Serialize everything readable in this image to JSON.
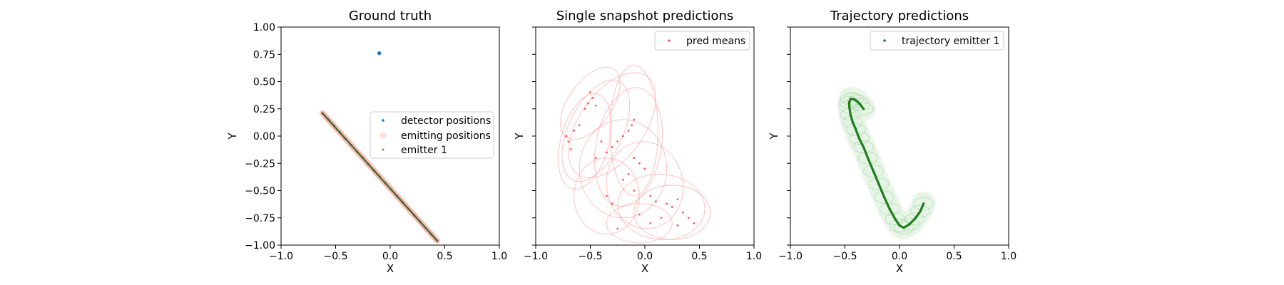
{
  "chart_data": [
    {
      "type": "scatter",
      "title": "Ground truth",
      "xlabel": "X",
      "ylabel": "Y",
      "xlim": [
        -1.0,
        1.0
      ],
      "ylim": [
        -1.0,
        1.0
      ],
      "xticks": [
        "−1.0",
        "−0.5",
        "0.0",
        "0.5",
        "1.0"
      ],
      "yticks": [
        "−1.00",
        "−0.75",
        "−0.50",
        "−0.25",
        "0.00",
        "0.25",
        "0.50",
        "0.75",
        "1.00"
      ],
      "legend_position": "center-right",
      "legend": [
        "detector positions",
        "emitting positions",
        "emitter 1"
      ],
      "series": [
        {
          "name": "detector positions",
          "color": "#1f77b4",
          "points": [
            [
              -0.1,
              0.76
            ]
          ]
        },
        {
          "name": "emitting positions",
          "color": "#ff9f96",
          "points": [
            [
              -0.62,
              0.21
            ],
            [
              0.43,
              -0.96
            ]
          ]
        },
        {
          "name": "emitter 1",
          "color": "#2f6b2f",
          "points": [
            [
              -0.62,
              0.21
            ],
            [
              0.43,
              -0.96
            ]
          ]
        }
      ]
    },
    {
      "type": "scatter",
      "title": "Single snapshot predictions",
      "xlabel": "X",
      "ylabel": "Y",
      "xlim": [
        -1.0,
        1.0
      ],
      "ylim": [
        -1.0,
        1.0
      ],
      "xticks": [
        "−1.0",
        "−0.5",
        "0.0",
        "0.5",
        "1.0"
      ],
      "legend_position": "top-right",
      "legend": [
        "pred means"
      ],
      "series": [
        {
          "name": "pred means",
          "color": "#ff3030",
          "points": [
            [
              -0.5,
              0.4
            ],
            [
              -0.48,
              0.35
            ],
            [
              -0.52,
              0.3
            ],
            [
              -0.45,
              0.28
            ],
            [
              -0.55,
              0.25
            ],
            [
              -0.6,
              0.1
            ],
            [
              -0.65,
              0.05
            ],
            [
              -0.7,
              -0.05
            ],
            [
              -0.72,
              0.0
            ],
            [
              -0.68,
              -0.12
            ],
            [
              -0.1,
              0.15
            ],
            [
              -0.12,
              0.1
            ],
            [
              -0.15,
              0.05
            ],
            [
              -0.2,
              0.0
            ],
            [
              -0.25,
              -0.05
            ],
            [
              -0.3,
              -0.1
            ],
            [
              -0.35,
              -0.15
            ],
            [
              -0.1,
              -0.2
            ],
            [
              -0.05,
              -0.25
            ],
            [
              0.0,
              -0.3
            ],
            [
              -0.15,
              -0.35
            ],
            [
              -0.2,
              -0.4
            ],
            [
              -0.1,
              -0.5
            ],
            [
              0.05,
              -0.55
            ],
            [
              0.1,
              -0.6
            ],
            [
              0.2,
              -0.62
            ],
            [
              0.25,
              -0.65
            ],
            [
              0.3,
              -0.58
            ],
            [
              0.35,
              -0.7
            ],
            [
              0.4,
              -0.75
            ],
            [
              0.15,
              -0.75
            ],
            [
              0.05,
              -0.8
            ],
            [
              -0.05,
              -0.72
            ],
            [
              -0.3,
              -0.62
            ],
            [
              -0.35,
              -0.55
            ],
            [
              -0.25,
              -0.85
            ],
            [
              0.45,
              -0.8
            ],
            [
              0.3,
              -0.82
            ],
            [
              -0.45,
              -0.2
            ],
            [
              -0.4,
              -0.05
            ]
          ]
        }
      ],
      "ellipses": [
        {
          "cx": -0.3,
          "cy": 0.1,
          "rx": 0.3,
          "ry": 0.55,
          "angle": 35
        },
        {
          "cx": -0.45,
          "cy": 0.05,
          "rx": 0.25,
          "ry": 0.5,
          "angle": 25
        },
        {
          "cx": -0.55,
          "cy": -0.05,
          "rx": 0.22,
          "ry": 0.45,
          "angle": 15
        },
        {
          "cx": -0.1,
          "cy": 0.05,
          "rx": 0.22,
          "ry": 0.6,
          "angle": 0
        },
        {
          "cx": -0.15,
          "cy": -0.1,
          "rx": 0.3,
          "ry": 0.55,
          "angle": 10
        },
        {
          "cx": -0.2,
          "cy": -0.3,
          "rx": 0.4,
          "ry": 0.45,
          "angle": 0
        },
        {
          "cx": 0.0,
          "cy": -0.45,
          "rx": 0.35,
          "ry": 0.4,
          "angle": -10
        },
        {
          "cx": 0.25,
          "cy": -0.7,
          "rx": 0.35,
          "ry": 0.25,
          "angle": 0
        },
        {
          "cx": 0.15,
          "cy": -0.65,
          "rx": 0.4,
          "ry": 0.3,
          "angle": 5
        },
        {
          "cx": -0.35,
          "cy": -0.55,
          "rx": 0.3,
          "ry": 0.35,
          "angle": 0
        },
        {
          "cx": -0.5,
          "cy": 0.3,
          "rx": 0.2,
          "ry": 0.38,
          "angle": 35
        },
        {
          "cx": -0.05,
          "cy": -0.8,
          "rx": 0.3,
          "ry": 0.18,
          "angle": 0
        }
      ]
    },
    {
      "type": "line",
      "title": "Trajectory predictions",
      "xlabel": "X",
      "ylabel": "Y",
      "xlim": [
        -1.0,
        1.0
      ],
      "ylim": [
        -1.0,
        1.0
      ],
      "xticks": [
        "−1.0",
        "−0.5",
        "0.0",
        "0.5",
        "1.0"
      ],
      "legend_position": "top-right",
      "legend": [
        "trajectory emitter 1"
      ],
      "series": [
        {
          "name": "trajectory emitter 1",
          "color": "#1f7f1f",
          "points": [
            [
              -0.33,
              0.25
            ],
            [
              -0.36,
              0.29
            ],
            [
              -0.39,
              0.32
            ],
            [
              -0.42,
              0.34
            ],
            [
              -0.45,
              0.34
            ],
            [
              -0.46,
              0.31
            ],
            [
              -0.46,
              0.27
            ],
            [
              -0.45,
              0.2
            ],
            [
              -0.43,
              0.13
            ],
            [
              -0.4,
              0.06
            ],
            [
              -0.37,
              -0.02
            ],
            [
              -0.33,
              -0.1
            ],
            [
              -0.29,
              -0.2
            ],
            [
              -0.24,
              -0.32
            ],
            [
              -0.19,
              -0.44
            ],
            [
              -0.14,
              -0.56
            ],
            [
              -0.09,
              -0.67
            ],
            [
              -0.04,
              -0.76
            ],
            [
              0.0,
              -0.82
            ],
            [
              0.04,
              -0.84
            ],
            [
              0.09,
              -0.81
            ],
            [
              0.14,
              -0.76
            ],
            [
              0.19,
              -0.69
            ],
            [
              0.22,
              -0.62
            ]
          ]
        }
      ],
      "ellipse_width_data": 0.1
    }
  ]
}
